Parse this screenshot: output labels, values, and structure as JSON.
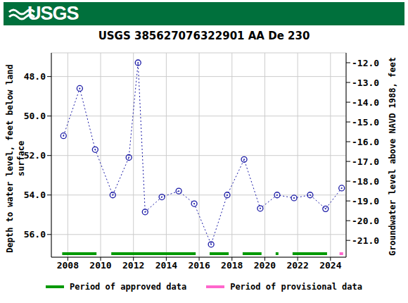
{
  "chart_data": {
    "type": "line",
    "header": "USGS",
    "title": "USGS 385627076322901 AA De 230",
    "y_label": "Depth to water level, feet below land surface",
    "y2_label": "Groundwater level above NAVD 1988, feet",
    "x": [
      2007.74,
      2008.73,
      2009.67,
      2010.74,
      2011.72,
      2012.28,
      2012.71,
      2013.73,
      2014.76,
      2015.7,
      2016.73,
      2017.71,
      2018.74,
      2019.72,
      2020.75,
      2021.78,
      2022.76,
      2023.7,
      2024.68
    ],
    "values": [
      51.0,
      48.6,
      51.7,
      54.0,
      52.1,
      47.3,
      54.86,
      54.1,
      53.8,
      54.44,
      56.5,
      54.0,
      52.2,
      54.68,
      54.0,
      54.15,
      54.0,
      54.7,
      53.65
    ],
    "color": "#1a1aa6",
    "marker": "circle",
    "line_style": "dotted",
    "xlim": [
      2007.0,
      2024.95
    ],
    "xticks": [
      2008,
      2010,
      2012,
      2014,
      2016,
      2018,
      2020,
      2022,
      2024
    ],
    "ylim": [
      57.15,
      46.8
    ],
    "yticks": [
      {
        "value": 48,
        "label": "48.0"
      },
      {
        "value": 50,
        "label": "50.0"
      },
      {
        "value": 52,
        "label": "52.0"
      },
      {
        "value": 54,
        "label": "54.0"
      },
      {
        "value": 56,
        "label": "56.0"
      }
    ],
    "y2lim": [
      -21.85,
      -11.5
    ],
    "y2ticks": [
      {
        "value": -21,
        "label": "-21.0"
      },
      {
        "value": -20,
        "label": "-20.0"
      },
      {
        "value": -19,
        "label": "-19.0"
      },
      {
        "value": -18,
        "label": "-18.0"
      },
      {
        "value": -17,
        "label": "-17.0"
      },
      {
        "value": -16,
        "label": "-16.0"
      },
      {
        "value": -15,
        "label": "-15.0"
      },
      {
        "value": -14,
        "label": "-14.0"
      },
      {
        "value": -13,
        "label": "-13.0"
      },
      {
        "value": -12,
        "label": "-12.0"
      }
    ],
    "grid": true,
    "legend": "bottom",
    "period_legend": [
      {
        "name": "Period of approved data",
        "color": "#009900"
      },
      {
        "name": "Period of provisional data",
        "color": "#ff66cc"
      }
    ],
    "periods": [
      {
        "start": 2007.66,
        "end": 2009.75,
        "status": "Period of approved data"
      },
      {
        "start": 2010.65,
        "end": 2015.79,
        "status": "Period of approved data"
      },
      {
        "start": 2016.64,
        "end": 2017.8,
        "status": "Period of approved data"
      },
      {
        "start": 2018.65,
        "end": 2019.8,
        "status": "Period of approved data"
      },
      {
        "start": 2020.66,
        "end": 2020.83,
        "status": "Period of approved data"
      },
      {
        "start": 2021.69,
        "end": 2023.79,
        "status": "Period of approved data"
      },
      {
        "start": 2024.55,
        "end": 2024.77,
        "status": "Period of provisional data"
      }
    ]
  }
}
